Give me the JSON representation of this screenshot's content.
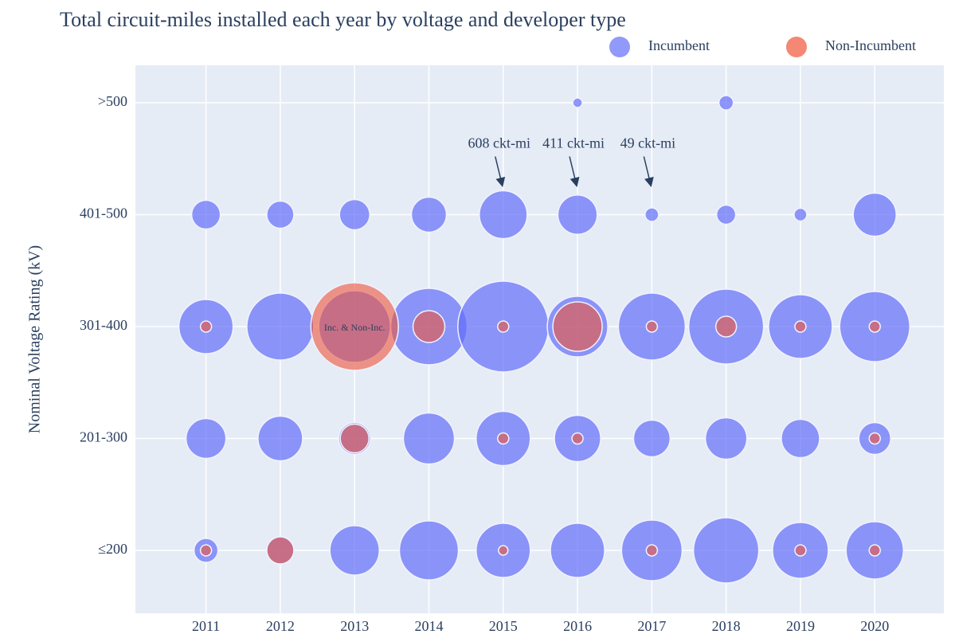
{
  "chart_data": {
    "type": "scatter",
    "title": "Total circuit-miles installed each year by voltage and developer type",
    "y_label": "Nominal Voltage Rating (kV)",
    "y_categories": [
      "≤200",
      "201-300",
      "301-400",
      "401-500",
      ">500"
    ],
    "xlim": [
      2010.05,
      2020.93
    ],
    "xticks": [
      2011,
      2012,
      2013,
      2014,
      2015,
      2016,
      2017,
      2018,
      2019,
      2020
    ],
    "grid": true,
    "legend": "top-right",
    "series": [
      {
        "name": "Incumbent",
        "color": "#636efa",
        "x": [
          2016,
          2018,
          2011,
          2012,
          2013,
          2014,
          2015,
          2016,
          2017,
          2018,
          2019,
          2020,
          2011,
          2012,
          2013,
          2014,
          2015,
          2016,
          2017,
          2018,
          2019,
          2020,
          2011,
          2012,
          2013,
          2014,
          2015,
          2016,
          2017,
          2018,
          2019,
          2020,
          2011,
          2012,
          2013,
          2014,
          2015,
          2016,
          2017,
          2018,
          2019,
          2020
        ],
        "y": [
          ">500",
          ">500",
          "401-500",
          "401-500",
          "401-500",
          "401-500",
          "401-500",
          "401-500",
          "401-500",
          "401-500",
          "401-500",
          "401-500",
          "301-400",
          "301-400",
          "301-400",
          "301-400",
          "301-400",
          "301-400",
          "301-400",
          "301-400",
          "301-400",
          "301-400",
          "201-300",
          "201-300",
          "201-300",
          "201-300",
          "201-300",
          "201-300",
          "201-300",
          "201-300",
          "201-300",
          "201-300",
          "≤200",
          "≤200",
          "≤200",
          "≤200",
          "≤200",
          "≤200",
          "≤200",
          "≤200",
          "≤200",
          "≤200"
        ],
        "sizes": [
          24,
          55,
          219,
          195,
          244,
          327,
          608,
          411,
          49,
          97,
          43,
          492,
          780,
          1191,
          1367,
          1555,
          2193,
          975,
          1191,
          1491,
          1080,
          1307,
          422,
          529,
          270,
          691,
          780,
          568,
          357,
          456,
          389,
          270,
          152,
          195,
          649,
          924,
          780,
          780,
          975,
          1135,
          827,
          875
        ]
      },
      {
        "name": "Non-Incumbent",
        "color": "#ef553b",
        "x": [
          2011,
          2013,
          2014,
          2015,
          2016,
          2017,
          2018,
          2019,
          2020,
          2013,
          2015,
          2016,
          2020,
          2011,
          2012,
          2015,
          2017,
          2019,
          2020
        ],
        "y": [
          "301-400",
          "301-400",
          "301-400",
          "301-400",
          "301-400",
          "301-400",
          "301-400",
          "301-400",
          "301-400",
          "201-300",
          "201-300",
          "201-300",
          "201-300",
          "≤200",
          "≤200",
          "≤200",
          "≤200",
          "≤200",
          "≤200"
        ],
        "sizes": [
          33,
          2042,
          270,
          33,
          649,
          33,
          114,
          33,
          33,
          219,
          33,
          33,
          33,
          33,
          195,
          24,
          33,
          33,
          33
        ]
      }
    ],
    "annotations": [
      {
        "text": "608 ckt-mi",
        "x": 2015,
        "y": "401-500",
        "arrow": true
      },
      {
        "text": "411 ckt-mi",
        "x": 2016,
        "y": "401-500",
        "arrow": true
      },
      {
        "text": "49 ckt-mi",
        "x": 2017,
        "y": "401-500",
        "arrow": true
      },
      {
        "text": "Inc. & Non-Inc.",
        "x": 2013,
        "y": "301-400",
        "arrow": false
      }
    ]
  }
}
